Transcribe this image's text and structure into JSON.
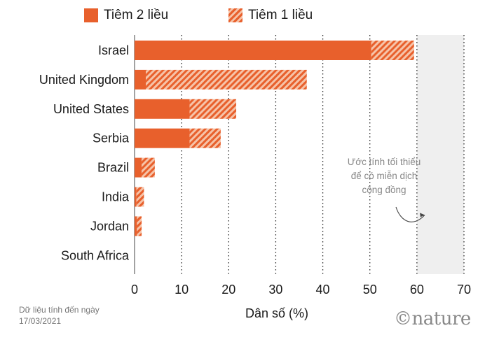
{
  "legend": {
    "full_label": "Tiêm 2 liều",
    "partial_label": "Tiêm 1 liều"
  },
  "footnote": {
    "line1": "Dữ liệu tính đến ngày",
    "line2": "17/03/2021"
  },
  "logo": "©nature",
  "colors": {
    "accent": "#e8602c",
    "hatch_light": "#f6c3a8",
    "band": "#efefef"
  },
  "chart_data": {
    "type": "bar",
    "orientation": "horizontal",
    "stacked": true,
    "xlabel": "Dân số (%)",
    "xlim": [
      0,
      70
    ],
    "xticks": [
      0,
      10,
      20,
      30,
      40,
      50,
      60,
      70
    ],
    "grid": "dotted vertical",
    "categories": [
      "Israel",
      "United Kingdom",
      "United States",
      "Serbia",
      "Brazil",
      "India",
      "Jordan",
      "South Africa"
    ],
    "series": [
      {
        "name": "Tiêm 2 liều",
        "values": [
          50.3,
          2.4,
          11.7,
          11.7,
          1.5,
          0.4,
          0.5,
          0.0
        ]
      },
      {
        "name": "Tiêm 1 liều",
        "values": [
          9.1,
          34.2,
          9.9,
          6.6,
          2.8,
          1.6,
          1.0,
          0.0
        ]
      }
    ],
    "band": {
      "from": 60,
      "to": 70
    },
    "annotation": {
      "lines": [
        "Ước tính tối thiểu",
        "để có miễn dịch",
        "cộng đồng"
      ],
      "x": 60,
      "y": 6
    }
  }
}
